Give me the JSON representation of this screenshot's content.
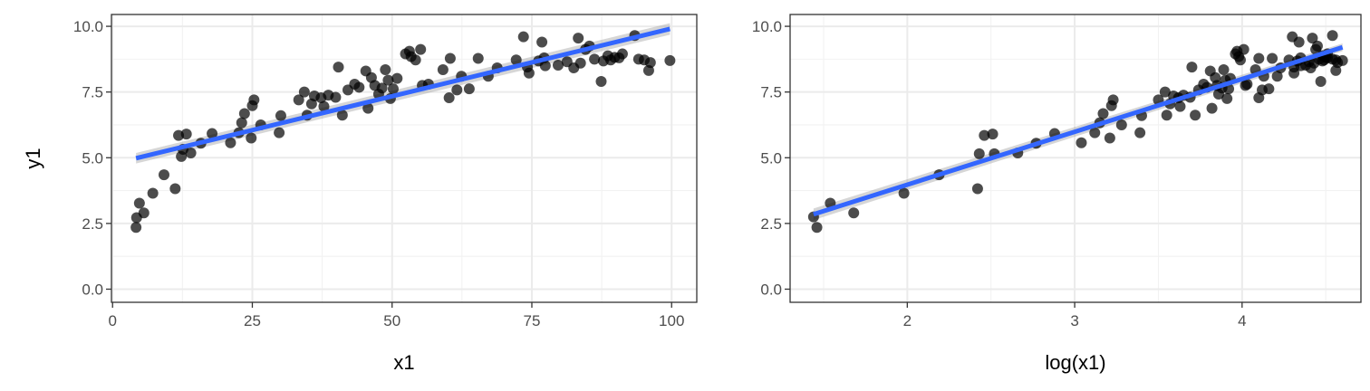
{
  "chart_data": [
    {
      "type": "scatter",
      "xlabel": "x1",
      "ylabel": "y1",
      "xlim": [
        -0.2,
        104.5
      ],
      "ylim": [
        -0.5,
        10.45
      ],
      "xticks": [
        0,
        25,
        50,
        75,
        100
      ],
      "xtick_labels": [
        "0",
        "25",
        "50",
        "75",
        "100"
      ],
      "yticks": [
        0,
        2.5,
        5,
        7.5,
        10
      ],
      "ytick_labels": [
        "0.0",
        "2.5",
        "5.0",
        "7.5",
        "10.0"
      ],
      "grid": true,
      "points": [
        [
          4.2,
          2.35
        ],
        [
          4.3,
          2.72
        ],
        [
          4.8,
          3.27
        ],
        [
          5.6,
          2.9
        ],
        [
          7.2,
          3.65
        ],
        [
          9.2,
          4.35
        ],
        [
          11.2,
          3.82
        ],
        [
          11.8,
          5.85
        ],
        [
          12.3,
          5.05
        ],
        [
          12.6,
          5.32
        ],
        [
          13.2,
          5.9
        ],
        [
          14.0,
          5.18
        ],
        [
          15.8,
          5.55
        ],
        [
          17.8,
          5.92
        ],
        [
          21.1,
          5.57
        ],
        [
          22.6,
          5.95
        ],
        [
          23.1,
          6.33
        ],
        [
          23.6,
          6.68
        ],
        [
          24.8,
          5.75
        ],
        [
          25.0,
          6.98
        ],
        [
          25.3,
          7.2
        ],
        [
          26.5,
          6.25
        ],
        [
          29.8,
          5.95
        ],
        [
          30.1,
          6.6
        ],
        [
          33.3,
          7.2
        ],
        [
          34.3,
          7.5
        ],
        [
          34.8,
          6.62
        ],
        [
          35.6,
          7.05
        ],
        [
          36.1,
          7.35
        ],
        [
          37.3,
          7.28
        ],
        [
          37.8,
          6.95
        ],
        [
          38.6,
          7.38
        ],
        [
          39.9,
          7.3
        ],
        [
          40.4,
          8.45
        ],
        [
          41.1,
          6.62
        ],
        [
          42.1,
          7.58
        ],
        [
          43.3,
          7.8
        ],
        [
          44.1,
          7.68
        ],
        [
          45.3,
          8.3
        ],
        [
          45.7,
          6.88
        ],
        [
          46.3,
          8.05
        ],
        [
          46.9,
          7.75
        ],
        [
          47.6,
          7.42
        ],
        [
          48.2,
          7.65
        ],
        [
          48.8,
          8.35
        ],
        [
          49.3,
          7.95
        ],
        [
          49.7,
          7.25
        ],
        [
          50.2,
          7.62
        ],
        [
          50.9,
          8.02
        ],
        [
          52.4,
          8.95
        ],
        [
          53.1,
          9.05
        ],
        [
          53.4,
          8.85
        ],
        [
          54.2,
          8.72
        ],
        [
          55.1,
          9.12
        ],
        [
          55.4,
          7.75
        ],
        [
          56.5,
          7.8
        ],
        [
          59.1,
          8.35
        ],
        [
          60.2,
          7.28
        ],
        [
          60.4,
          8.78
        ],
        [
          61.6,
          7.58
        ],
        [
          62.4,
          8.1
        ],
        [
          63.8,
          7.62
        ],
        [
          65.4,
          8.78
        ],
        [
          67.2,
          8.1
        ],
        [
          68.8,
          8.42
        ],
        [
          72.2,
          8.72
        ],
        [
          73.5,
          9.6
        ],
        [
          74.2,
          8.45
        ],
        [
          74.5,
          8.22
        ],
        [
          76.2,
          8.68
        ],
        [
          76.8,
          9.4
        ],
        [
          77.2,
          8.8
        ],
        [
          77.4,
          8.5
        ],
        [
          79.7,
          8.52
        ],
        [
          81.3,
          8.65
        ],
        [
          82.5,
          8.42
        ],
        [
          83.3,
          9.55
        ],
        [
          83.7,
          8.6
        ],
        [
          84.6,
          9.12
        ],
        [
          85.3,
          9.25
        ],
        [
          86.2,
          8.75
        ],
        [
          87.4,
          7.9
        ],
        [
          87.8,
          8.68
        ],
        [
          88.6,
          8.88
        ],
        [
          89.1,
          8.72
        ],
        [
          89.8,
          8.82
        ],
        [
          90.6,
          8.8
        ],
        [
          91.2,
          8.95
        ],
        [
          93.4,
          9.65
        ],
        [
          94.1,
          8.75
        ],
        [
          95.1,
          8.72
        ],
        [
          95.9,
          8.32
        ],
        [
          96.2,
          8.62
        ],
        [
          99.7,
          8.7
        ]
      ],
      "fit": {
        "type": "linear",
        "x": [
          4.2,
          99.7
        ],
        "y": [
          4.98,
          9.9
        ],
        "se_halfwidth": [
          0.2,
          0.22
        ]
      }
    },
    {
      "type": "scatter",
      "xlabel": "log(x1)",
      "ylabel": "",
      "xlim": [
        1.3,
        4.71
      ],
      "ylim": [
        -0.5,
        10.45
      ],
      "xticks": [
        2,
        3,
        4
      ],
      "xtick_labels": [
        "2",
        "3",
        "4"
      ],
      "yticks": [
        0,
        2.5,
        5,
        7.5,
        10
      ],
      "ytick_labels": [
        "0.0",
        "2.5",
        "5.0",
        "7.5",
        "10.0"
      ],
      "grid": true,
      "points": [
        [
          1.44,
          2.75
        ],
        [
          1.46,
          2.35
        ],
        [
          1.54,
          3.27
        ],
        [
          1.68,
          2.9
        ],
        [
          1.98,
          3.65
        ],
        [
          2.19,
          4.35
        ],
        [
          2.42,
          3.82
        ],
        [
          2.43,
          5.15
        ],
        [
          2.46,
          5.85
        ],
        [
          2.51,
          5.9
        ],
        [
          2.52,
          5.15
        ],
        [
          2.66,
          5.18
        ],
        [
          2.77,
          5.55
        ],
        [
          2.88,
          5.92
        ],
        [
          3.04,
          5.57
        ],
        [
          3.12,
          5.95
        ],
        [
          3.15,
          6.33
        ],
        [
          3.17,
          6.68
        ],
        [
          3.21,
          5.75
        ],
        [
          3.22,
          6.98
        ],
        [
          3.23,
          7.2
        ],
        [
          3.28,
          6.25
        ],
        [
          3.39,
          5.95
        ],
        [
          3.4,
          6.6
        ],
        [
          3.5,
          7.2
        ],
        [
          3.54,
          7.5
        ],
        [
          3.55,
          6.62
        ],
        [
          3.57,
          7.05
        ],
        [
          3.59,
          7.35
        ],
        [
          3.62,
          7.28
        ],
        [
          3.63,
          6.95
        ],
        [
          3.65,
          7.38
        ],
        [
          3.69,
          7.3
        ],
        [
          3.7,
          8.45
        ],
        [
          3.72,
          6.62
        ],
        [
          3.74,
          7.58
        ],
        [
          3.77,
          7.8
        ],
        [
          3.79,
          7.68
        ],
        [
          3.81,
          8.3
        ],
        [
          3.82,
          6.88
        ],
        [
          3.84,
          8.05
        ],
        [
          3.85,
          7.75
        ],
        [
          3.86,
          7.42
        ],
        [
          3.88,
          7.65
        ],
        [
          3.89,
          8.35
        ],
        [
          3.9,
          7.95
        ],
        [
          3.91,
          7.25
        ],
        [
          3.92,
          7.62
        ],
        [
          3.93,
          8.02
        ],
        [
          3.96,
          8.95
        ],
        [
          3.97,
          9.05
        ],
        [
          3.98,
          8.85
        ],
        [
          3.99,
          8.72
        ],
        [
          4.01,
          9.12
        ],
        [
          4.02,
          7.75
        ],
        [
          4.03,
          7.8
        ],
        [
          4.08,
          8.35
        ],
        [
          4.1,
          7.28
        ],
        [
          4.1,
          8.78
        ],
        [
          4.12,
          7.58
        ],
        [
          4.13,
          8.1
        ],
        [
          4.16,
          7.62
        ],
        [
          4.18,
          8.78
        ],
        [
          4.21,
          8.1
        ],
        [
          4.23,
          8.42
        ],
        [
          4.28,
          8.72
        ],
        [
          4.3,
          9.6
        ],
        [
          4.31,
          8.45
        ],
        [
          4.31,
          8.22
        ],
        [
          4.33,
          8.68
        ],
        [
          4.34,
          9.4
        ],
        [
          4.35,
          8.8
        ],
        [
          4.35,
          8.5
        ],
        [
          4.38,
          8.52
        ],
        [
          4.4,
          8.65
        ],
        [
          4.41,
          8.42
        ],
        [
          4.42,
          9.55
        ],
        [
          4.43,
          8.6
        ],
        [
          4.44,
          9.12
        ],
        [
          4.45,
          9.25
        ],
        [
          4.46,
          8.75
        ],
        [
          4.47,
          7.9
        ],
        [
          4.48,
          8.68
        ],
        [
          4.48,
          8.88
        ],
        [
          4.49,
          8.72
        ],
        [
          4.5,
          8.82
        ],
        [
          4.51,
          8.8
        ],
        [
          4.51,
          8.95
        ],
        [
          4.54,
          9.65
        ],
        [
          4.54,
          8.75
        ],
        [
          4.56,
          8.72
        ],
        [
          4.56,
          8.32
        ],
        [
          4.57,
          8.62
        ],
        [
          4.6,
          8.7
        ]
      ],
      "fit": {
        "type": "linear",
        "x": [
          1.44,
          4.6
        ],
        "y": [
          2.85,
          9.2
        ],
        "se_halfwidth": [
          0.22,
          0.15
        ]
      }
    }
  ]
}
